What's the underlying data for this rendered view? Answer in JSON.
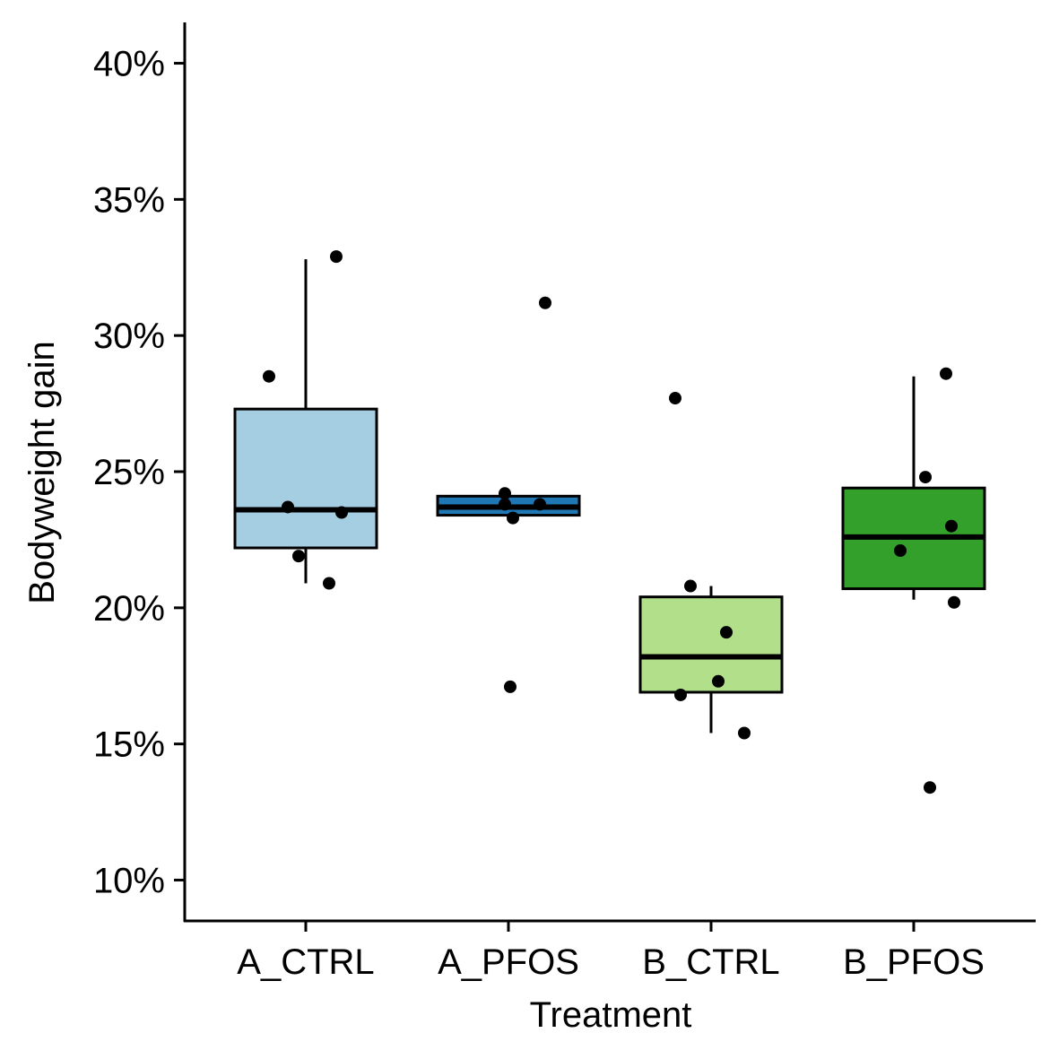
{
  "chart_data": {
    "type": "box",
    "title": "",
    "xlabel": "Treatment",
    "ylabel": "Bodyweight gain",
    "categories": [
      "A_CTRL",
      "A_PFOS",
      "B_CTRL",
      "B_PFOS"
    ],
    "ylim": [
      0.085,
      0.415
    ],
    "yticks": [
      0.1,
      0.15,
      0.2,
      0.25,
      0.3,
      0.35,
      0.4
    ],
    "ytick_labels": [
      "10%",
      "15%",
      "20%",
      "25%",
      "30%",
      "35%",
      "40%"
    ],
    "grid": false,
    "legend": "none",
    "boxes": [
      {
        "category": "A_CTRL",
        "whisker_low": 0.209,
        "q1": 0.222,
        "median": 0.236,
        "q3": 0.273,
        "whisker_high": 0.328,
        "color": "#A6CEE3"
      },
      {
        "category": "A_PFOS",
        "whisker_low": 0.234,
        "q1": 0.234,
        "median": 0.237,
        "q3": 0.241,
        "whisker_high": 0.241,
        "color": "#1F78B4"
      },
      {
        "category": "B_CTRL",
        "whisker_low": 0.154,
        "q1": 0.169,
        "median": 0.182,
        "q3": 0.204,
        "whisker_high": 0.208,
        "color": "#B2DF8A"
      },
      {
        "category": "B_PFOS",
        "whisker_low": 0.203,
        "q1": 0.207,
        "median": 0.226,
        "q3": 0.244,
        "whisker_high": 0.285,
        "color": "#33A02C"
      }
    ],
    "points": [
      {
        "category": "A_CTRL",
        "values": [
          0.329,
          0.285,
          0.237,
          0.235,
          0.219,
          0.209
        ]
      },
      {
        "category": "A_PFOS",
        "values": [
          0.312,
          0.242,
          0.238,
          0.238,
          0.233,
          0.171
        ]
      },
      {
        "category": "B_CTRL",
        "values": [
          0.277,
          0.208,
          0.191,
          0.173,
          0.168,
          0.154
        ]
      },
      {
        "category": "B_PFOS",
        "values": [
          0.286,
          0.248,
          0.23,
          0.221,
          0.202,
          0.134
        ]
      }
    ]
  }
}
